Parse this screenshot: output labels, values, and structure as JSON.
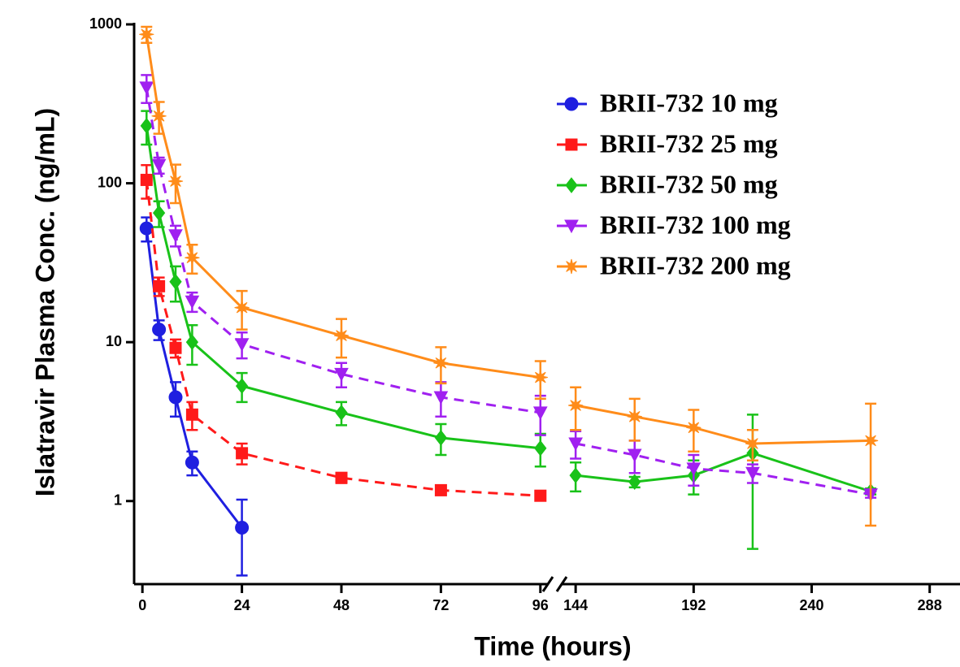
{
  "chart_data": {
    "type": "line",
    "y_label": "Islatravir Plasma Conc. (ng/mL)",
    "x_label": "Time (hours)",
    "y_scale": "log",
    "ylim": [
      0.3,
      1000
    ],
    "yticks": [
      1,
      10,
      100,
      1000
    ],
    "x_axes": [
      {
        "xlim": [
          -2,
          98
        ],
        "xticks": [
          0,
          24,
          48,
          72,
          96
        ]
      },
      {
        "xlim": [
          138,
          300
        ],
        "xticks": [
          144,
          192,
          240,
          288
        ]
      }
    ],
    "x": [
      1,
      4,
      8,
      12,
      24,
      48,
      72,
      96,
      144,
      168,
      192,
      216,
      264
    ],
    "legend": "top-right",
    "series": [
      {
        "name": "BRII-732 10 mg",
        "color": "#1f1fe0",
        "marker": "circle",
        "line_style": "solid",
        "values": [
          52,
          12,
          4.5,
          1.75,
          0.68,
          null,
          null,
          null,
          null,
          null,
          null,
          null,
          null
        ],
        "errors": [
          9,
          1.7,
          1.1,
          0.3,
          0.34,
          null,
          null,
          null,
          null,
          null,
          null,
          null,
          null
        ]
      },
      {
        "name": "BRII-732 25 mg",
        "color": "#ff1a1a",
        "marker": "square",
        "line_style": "dashed",
        "values": [
          105,
          22.5,
          9.2,
          3.5,
          2.0,
          1.4,
          1.17,
          1.08,
          null,
          null,
          null,
          null,
          null
        ],
        "errors": [
          25,
          3,
          1.2,
          0.7,
          0.3,
          0.1,
          0.05,
          0.05,
          null,
          null,
          null,
          null,
          null
        ]
      },
      {
        "name": "BRII-732 50 mg",
        "color": "#19c219",
        "marker": "diamond",
        "line_style": "solid",
        "values": [
          230,
          65,
          24,
          10,
          5.3,
          3.6,
          2.5,
          2.15,
          1.45,
          1.32,
          1.45,
          2.0,
          1.15
        ],
        "errors": [
          55,
          12,
          6,
          2.8,
          1.1,
          0.6,
          0.55,
          0.5,
          0.3,
          0.1,
          0.35,
          1.5,
          0.05
        ]
      },
      {
        "name": "BRII-732 100 mg",
        "color": "#a020f0",
        "marker": "triangle-down",
        "line_style": "dashed",
        "values": [
          400,
          130,
          47,
          18,
          9.7,
          6.3,
          4.5,
          3.6,
          2.3,
          1.95,
          1.6,
          1.5,
          1.1
        ],
        "errors": [
          80,
          15,
          7,
          2.5,
          1.8,
          1.1,
          1.1,
          1.0,
          0.45,
          0.45,
          0.35,
          0.2,
          0.05
        ]
      },
      {
        "name": "BRII-732 200 mg",
        "color": "#ff8c1a",
        "marker": "star",
        "line_style": "solid",
        "values": [
          865,
          265,
          103,
          34,
          16.5,
          11,
          7.4,
          6.0,
          4.0,
          3.4,
          2.9,
          2.3,
          2.4
        ],
        "errors": [
          100,
          60,
          28,
          7,
          4.5,
          3,
          1.9,
          1.6,
          1.2,
          1.0,
          0.85,
          0.5,
          1.7
        ]
      }
    ]
  }
}
